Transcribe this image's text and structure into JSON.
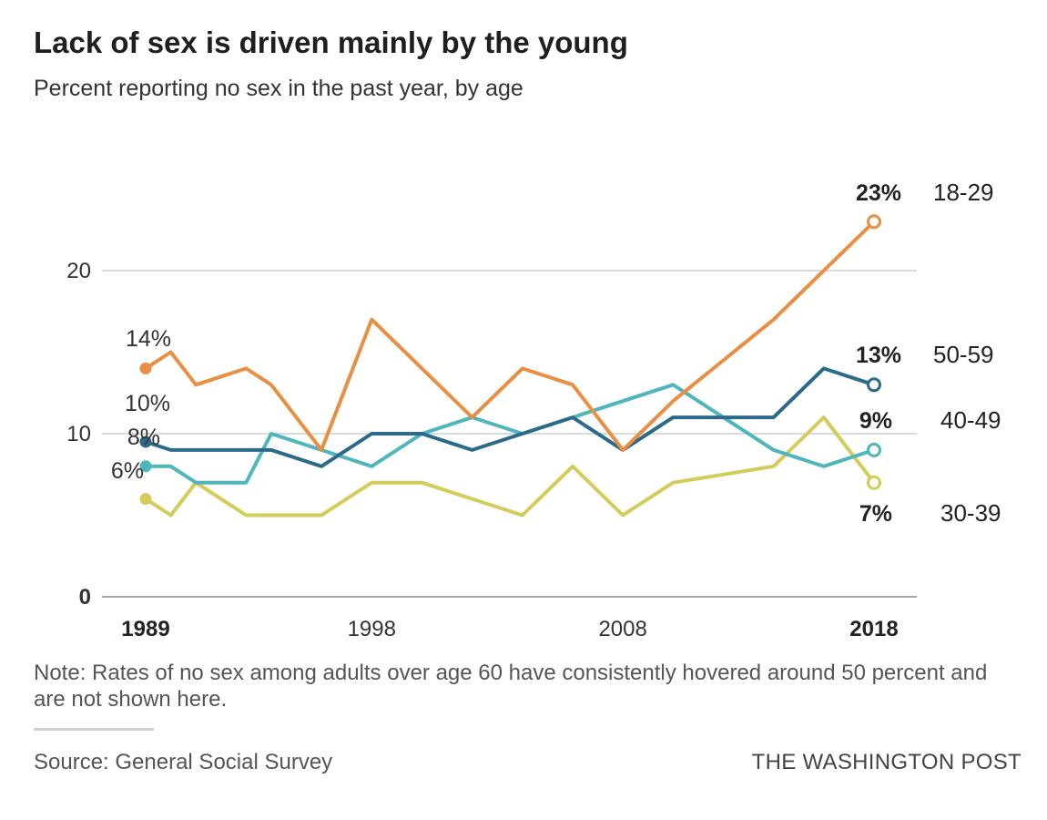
{
  "header": {
    "title": "Lack of sex is driven mainly by the young",
    "subtitle": "Percent reporting no sex in the past year, by age"
  },
  "footer": {
    "note": "Note: Rates of no sex among adults over age 60 have consistently hovered around 50 percent and are not shown here.",
    "source": "Source: General Social Survey",
    "brand": "THE WASHINGTON POST"
  },
  "chart_data": {
    "type": "line",
    "title": "Lack of sex is driven mainly by the young",
    "subtitle": "Percent reporting no sex in the past year, by age",
    "xlim": [
      1989,
      2018
    ],
    "ylim": [
      0,
      23
    ],
    "grid": true,
    "y_ticks": [
      {
        "value": 0,
        "label": "0",
        "bold": true
      },
      {
        "value": 10,
        "label": "10",
        "bold": false
      },
      {
        "value": 20,
        "label": "20",
        "bold": false
      }
    ],
    "x_ticks": [
      {
        "value": 1989,
        "label": "1989",
        "bold": true
      },
      {
        "value": 1998,
        "label": "1998",
        "bold": false
      },
      {
        "value": 2008,
        "label": "2008",
        "bold": false
      },
      {
        "value": 2018,
        "label": "2018",
        "bold": true
      }
    ],
    "series": [
      {
        "name": "30-39",
        "color": "#d3cc5a",
        "start_label": "6%",
        "end_label": "7%",
        "x": [
          1989,
          1990,
          1991,
          1993,
          1994,
          1996,
          1998,
          2000,
          2002,
          2004,
          2006,
          2008,
          2010,
          2012,
          2014,
          2016,
          2018
        ],
        "y": [
          6,
          5,
          7,
          5,
          5,
          5,
          7,
          7,
          6,
          5,
          8,
          5,
          7,
          7.5,
          8,
          11,
          7
        ]
      },
      {
        "name": "40-49",
        "color": "#4fb6bb",
        "start_label": "8%",
        "end_label": "9%",
        "x": [
          1989,
          1990,
          1991,
          1993,
          1994,
          1996,
          1998,
          2000,
          2002,
          2004,
          2006,
          2008,
          2010,
          2012,
          2014,
          2016,
          2018
        ],
        "y": [
          8,
          8,
          7,
          7,
          10,
          9,
          8,
          10,
          11,
          10,
          11,
          12,
          13,
          11,
          9,
          8,
          9
        ]
      },
      {
        "name": "50-59",
        "color": "#2c6a8a",
        "start_label": "10%",
        "end_label": "13%",
        "x": [
          1989,
          1990,
          1991,
          1993,
          1994,
          1996,
          1998,
          2000,
          2002,
          2004,
          2006,
          2008,
          2010,
          2012,
          2014,
          2016,
          2018
        ],
        "y": [
          9.5,
          9,
          9,
          9,
          9,
          8,
          10,
          10,
          9,
          10,
          11,
          9,
          11,
          11,
          11,
          14,
          13
        ]
      },
      {
        "name": "18-29",
        "color": "#e88f43",
        "start_label": "14%",
        "end_label": "23%",
        "x": [
          1989,
          1990,
          1991,
          1993,
          1994,
          1996,
          1998,
          2000,
          2002,
          2004,
          2006,
          2008,
          2010,
          2012,
          2014,
          2016,
          2018
        ],
        "y": [
          14,
          15,
          13,
          14,
          13,
          9,
          17,
          14,
          11,
          14,
          13,
          9,
          12,
          14.5,
          17,
          20,
          23
        ]
      }
    ]
  }
}
